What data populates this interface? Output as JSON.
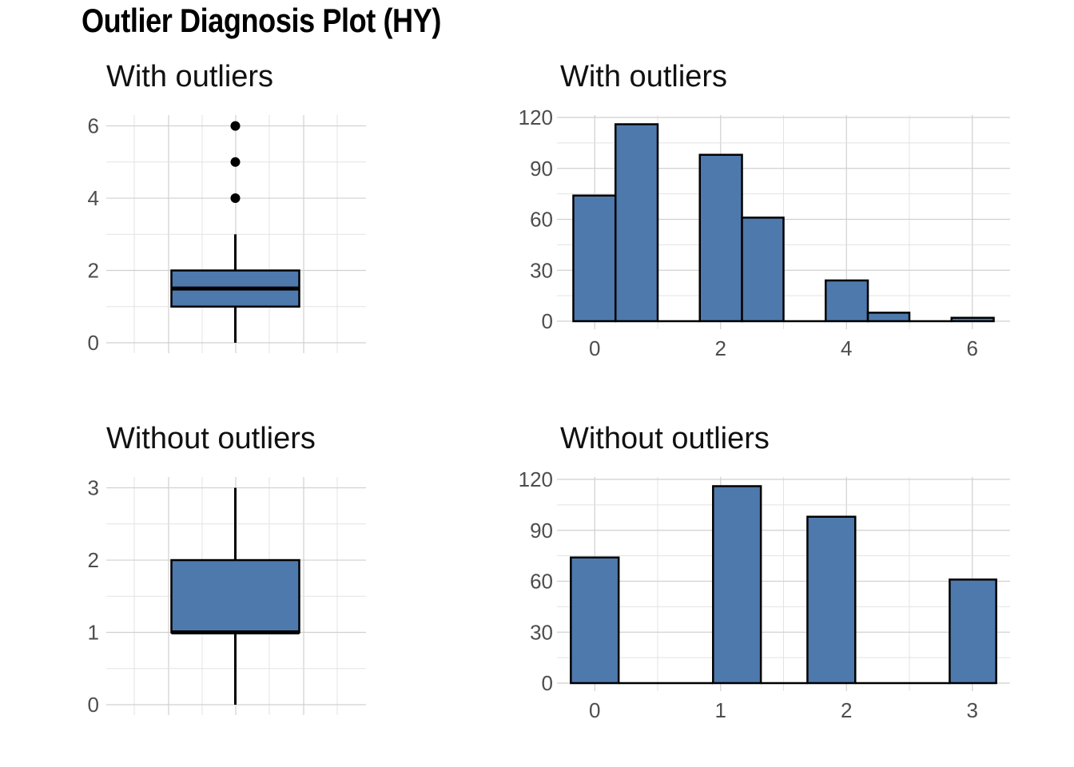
{
  "title": "Outlier Diagnosis Plot (HY)",
  "colors": {
    "fill": "#4E79AD",
    "outline": "#000000",
    "outlier": "#000000"
  },
  "chart_data": [
    {
      "type": "boxplot",
      "title": "With outliers",
      "ylim": [
        0,
        6.3
      ],
      "yticks": [
        0,
        2,
        4,
        6
      ],
      "ytick_labels": [
        "0",
        "2",
        "4",
        "6"
      ],
      "stats": {
        "min": 0,
        "q1": 1,
        "median": 1.5,
        "q3": 2,
        "max": 3
      },
      "outliers": [
        4,
        5,
        6
      ],
      "grid": true
    },
    {
      "type": "bar",
      "title": "With outliers",
      "xlim": [
        -0.6,
        6.6
      ],
      "ylim": [
        0,
        120
      ],
      "xticks": [
        0,
        2,
        4,
        6
      ],
      "xtick_labels": [
        "0",
        "2",
        "4",
        "6"
      ],
      "yticks": [
        0,
        30,
        60,
        90,
        120
      ],
      "ytick_labels": [
        "0",
        "30",
        "60",
        "90",
        "120"
      ],
      "bins": [
        {
          "x0": -0.34,
          "x1": 0.33,
          "value": 74
        },
        {
          "x0": 0.33,
          "x1": 1.0,
          "value": 116
        },
        {
          "x0": 1.0,
          "x1": 1.67,
          "value": 0
        },
        {
          "x0": 1.67,
          "x1": 2.34,
          "value": 98
        },
        {
          "x0": 2.34,
          "x1": 3.0,
          "value": 61
        },
        {
          "x0": 3.0,
          "x1": 3.67,
          "value": 0
        },
        {
          "x0": 3.67,
          "x1": 4.34,
          "value": 24
        },
        {
          "x0": 4.34,
          "x1": 5.0,
          "value": 5
        },
        {
          "x0": 5.0,
          "x1": 5.67,
          "value": 0
        },
        {
          "x0": 5.67,
          "x1": 6.34,
          "value": 2
        }
      ],
      "grid": true
    },
    {
      "type": "boxplot",
      "title": "Without outliers",
      "ylim": [
        0,
        3.15
      ],
      "yticks": [
        0,
        1,
        2,
        3
      ],
      "ytick_labels": [
        "0",
        "1",
        "2",
        "3"
      ],
      "stats": {
        "min": 0,
        "q1": 1,
        "median": 1,
        "q3": 2,
        "max": 3
      },
      "outliers": [],
      "grid": true
    },
    {
      "type": "bar",
      "title": "Without outliers",
      "xlim": [
        -0.3,
        3.3
      ],
      "ylim": [
        0,
        120
      ],
      "xticks": [
        0,
        1,
        2,
        3
      ],
      "xtick_labels": [
        "0",
        "1",
        "2",
        "3"
      ],
      "yticks": [
        0,
        30,
        60,
        90,
        120
      ],
      "ytick_labels": [
        "0",
        "30",
        "60",
        "90",
        "120"
      ],
      "bins": [
        {
          "x0": -0.19,
          "x1": 0.19,
          "value": 74
        },
        {
          "x0": 0.19,
          "x1": 0.94,
          "value": 0
        },
        {
          "x0": 0.94,
          "x1": 1.32,
          "value": 116
        },
        {
          "x0": 1.32,
          "x1": 1.69,
          "value": 0
        },
        {
          "x0": 1.69,
          "x1": 2.07,
          "value": 98
        },
        {
          "x0": 2.07,
          "x1": 2.82,
          "value": 0
        },
        {
          "x0": 2.82,
          "x1": 3.19,
          "value": 61
        }
      ],
      "grid": true
    }
  ]
}
